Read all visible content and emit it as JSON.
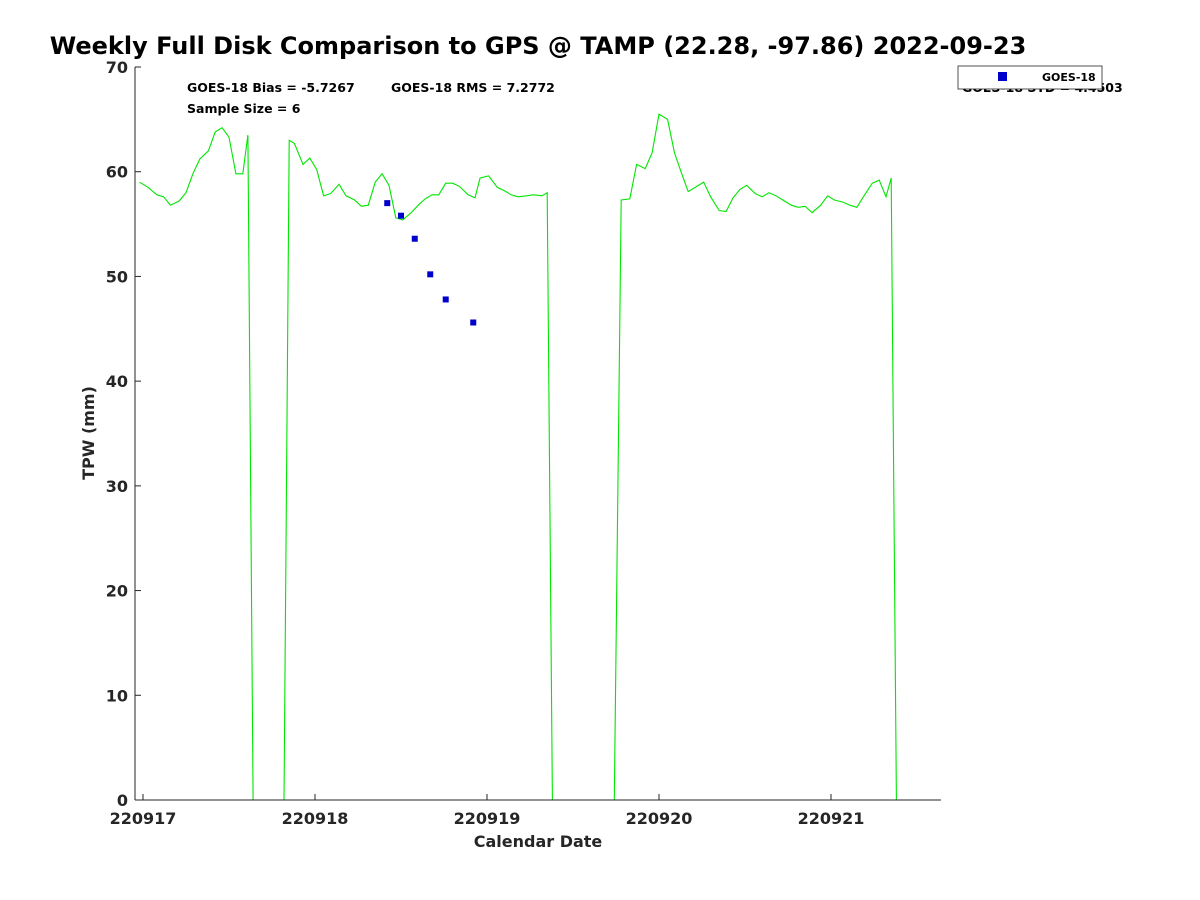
{
  "chart_data": {
    "type": "line",
    "title": "Weekly Full Disk Comparison to GPS @ TAMP (22.28, -97.86) 2022-09-23",
    "xlabel": "Calendar Date",
    "ylabel": "TPW (mm)",
    "ylim": [
      0,
      70
    ],
    "xlim": [
      220916.98,
      220921.64
    ],
    "yticks": [
      "0",
      "10",
      "20",
      "30",
      "40",
      "50",
      "60",
      "70"
    ],
    "xticks": [
      {
        "value": 220917,
        "label": "220917"
      },
      {
        "value": 220918,
        "label": "220918"
      },
      {
        "value": 220919,
        "label": "220919"
      },
      {
        "value": 220920,
        "label": "220920"
      },
      {
        "value": 220921,
        "label": "220921"
      }
    ],
    "grid": false,
    "legend_position": "top-right",
    "annotations": {
      "bias": "GOES-18 Bias = -5.7267",
      "rms": "GOES-18 RMS = 7.2772",
      "sample_size": "Sample Size = 6",
      "std_partial": "GOES-18 STD = 4.4503"
    },
    "series": [
      {
        "color": "#00e600",
        "style": "line",
        "x": [
          220916.98,
          220917.03,
          220917.08,
          220917.12,
          220917.16,
          220917.21,
          220917.25,
          220917.29,
          220917.33,
          220917.38,
          220917.42,
          220917.46,
          220917.5,
          220917.54,
          220917.58,
          220917.61,
          220917.64,
          220917.82,
          220917.85,
          220917.88,
          220917.93,
          220917.97,
          220918.01,
          220918.05,
          220918.09,
          220918.14,
          220918.18,
          220918.23,
          220918.27,
          220918.31,
          220918.35,
          220918.39,
          220918.43,
          220918.47,
          220918.51,
          220918.56,
          220918.6,
          220918.64,
          220918.68,
          220918.72,
          220918.76,
          220918.8,
          220918.84,
          220918.89,
          220918.93,
          220918.96,
          220919.01,
          220919.06,
          220919.1,
          220919.14,
          220919.18,
          220919.23,
          220919.27,
          220919.32,
          220919.35,
          220919.38,
          220919.74,
          220919.78,
          220919.83,
          220919.87,
          220919.92,
          220919.96,
          220920.0,
          220920.05,
          220920.09,
          220920.13,
          220920.17,
          220920.22,
          220920.26,
          220920.3,
          220920.35,
          220920.39,
          220920.43,
          220920.47,
          220920.51,
          220920.56,
          220920.6,
          220920.64,
          220920.68,
          220920.72,
          220920.77,
          220920.81,
          220920.85,
          220920.89,
          220920.94,
          220920.98,
          220921.02,
          220921.07,
          220921.11,
          220921.15,
          220921.2,
          220921.24,
          220921.28,
          220921.32,
          220921.35,
          220921.38
        ],
        "y": [
          59.0,
          58.5,
          57.8,
          57.6,
          56.8,
          57.2,
          58.0,
          59.8,
          61.2,
          62.0,
          63.8,
          64.2,
          63.3,
          59.8,
          59.8,
          63.5,
          0.0,
          0.0,
          63.0,
          62.7,
          60.7,
          61.3,
          60.2,
          57.7,
          57.9,
          58.8,
          57.7,
          57.3,
          56.7,
          56.8,
          59.0,
          59.8,
          58.7,
          55.6,
          55.4,
          56.1,
          56.8,
          57.4,
          57.8,
          57.8,
          58.9,
          58.9,
          58.6,
          57.8,
          57.5,
          59.4,
          59.6,
          58.5,
          58.2,
          57.8,
          57.6,
          57.7,
          57.8,
          57.7,
          58.0,
          0.0,
          0.0,
          57.3,
          57.4,
          60.7,
          60.3,
          61.8,
          65.5,
          65.0,
          61.8,
          59.9,
          58.1,
          58.6,
          59.0,
          57.6,
          56.3,
          56.2,
          57.5,
          58.3,
          58.7,
          57.9,
          57.6,
          58.0,
          57.7,
          57.3,
          56.8,
          56.6,
          56.7,
          56.1,
          56.8,
          57.7,
          57.3,
          57.1,
          56.8,
          56.6,
          57.9,
          58.9,
          59.2,
          57.6,
          59.4,
          0.0
        ]
      },
      {
        "name": "GOES-18",
        "color": "#0000cc",
        "style": "markers",
        "x": [
          220918.42,
          220918.5,
          220918.58,
          220918.67,
          220918.76,
          220918.92
        ],
        "y": [
          57.0,
          55.8,
          53.6,
          50.2,
          47.8,
          45.6
        ]
      }
    ]
  }
}
